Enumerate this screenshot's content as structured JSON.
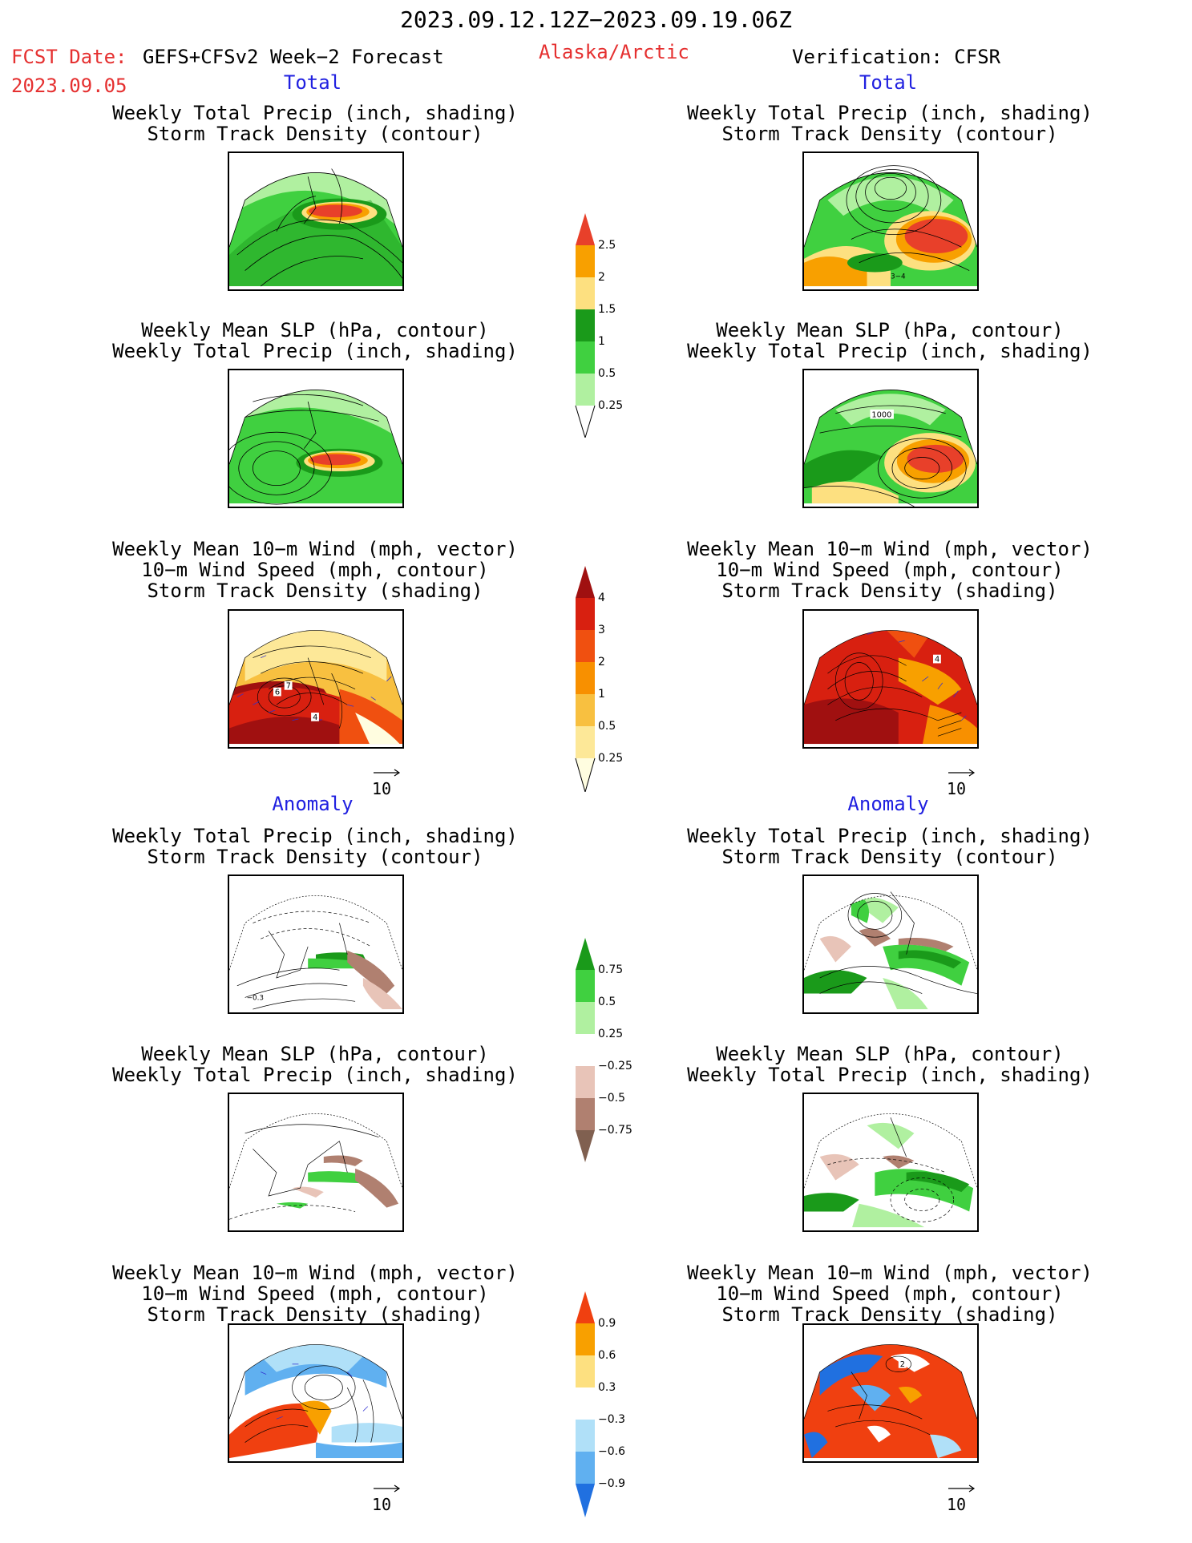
{
  "header": {
    "date_range": "2023.09.12.12Z−2023.09.19.06Z",
    "fcst_label": "FCST Date:",
    "fcst_model": "GEFS+CFSv2 Week−2 Forecast",
    "fcst_date": "2023.09.05",
    "region": "Alaska/Arctic",
    "verification": "Verification: CFSR"
  },
  "sections": {
    "total": "Total",
    "anomaly": "Anomaly"
  },
  "panel_titles": {
    "precip_track": [
      "Weekly Total Precip (inch, shading)",
      "Storm Track Density (contour)"
    ],
    "slp_precip": [
      "Weekly Mean SLP (hPa, contour)",
      "Weekly Total Precip (inch, shading)"
    ],
    "wind_track": [
      "Weekly Mean 10−m Wind (mph, vector)",
      "10−m Wind Speed (mph, contour)",
      "Storm Track Density (shading)"
    ]
  },
  "map_labels": {
    "slp_1000": "1000",
    "wind_7": "7",
    "wind_6": "6",
    "wind_4": "4",
    "wind_4b": "4",
    "anom_precip_left": "−0.3",
    "anom_wind_right": "2",
    "track_total_right": "3−4"
  },
  "reference_vector": "10",
  "colorbars": {
    "precip_total": {
      "labels": [
        "2.5",
        "2",
        "1.5",
        "1",
        "0.5",
        "0.25"
      ],
      "colors": [
        "#e8402a",
        "#f8a000",
        "#fde080",
        "#1a9a1a",
        "#40d040",
        "#b0f0a0"
      ]
    },
    "storm_total": {
      "labels": [
        "4",
        "3",
        "2",
        "1",
        "0.5",
        "0.25"
      ],
      "colors": [
        "#a01010",
        "#d82010",
        "#f05010",
        "#f89000",
        "#f8c040",
        "#fde898",
        "#fffde0"
      ]
    },
    "precip_anom": {
      "labels": [
        "0.75",
        "0.5",
        "0.25",
        "−0.25",
        "−0.5",
        "−0.75"
      ],
      "colors": [
        "#1a9a1a",
        "#40d040",
        "#b0f0a0",
        "#ffffff",
        "#e8c4b8",
        "#b08070",
        "#806050"
      ]
    },
    "storm_anom": {
      "labels": [
        "0.9",
        "0.6",
        "0.3",
        "−0.3",
        "−0.6",
        "−0.9"
      ],
      "colors": [
        "#f04010",
        "#f8a000",
        "#fde080",
        "#ffffff",
        "#b0e0f8",
        "#60b0f0",
        "#2070e0"
      ]
    }
  }
}
